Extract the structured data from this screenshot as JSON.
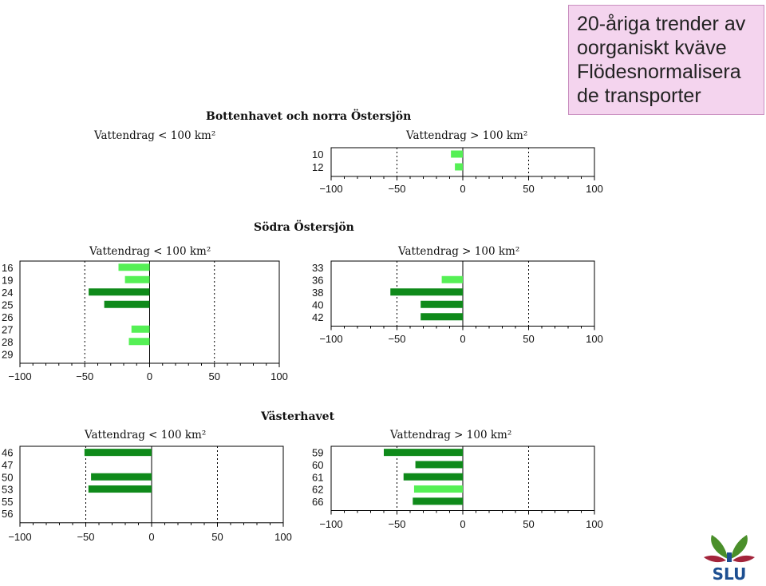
{
  "title_box": {
    "lines": [
      "20-åriga trender av",
      "oorganiskt kväve",
      "Flödesnormalisera",
      "de transporter"
    ],
    "background": "#f4d4ee"
  },
  "colors": {
    "significant": "#0f8a1a",
    "not_significant": "#55f055",
    "grid_line": "#000000"
  },
  "sections": [
    {
      "title": "Bottenhavet och norra Östersjön"
    },
    {
      "title": "Södra Östersjön"
    },
    {
      "title": "Västerhavet"
    }
  ],
  "panels": [
    {
      "title": "Vattendrag < 100 km²"
    },
    {
      "title": "Vattendrag > 100 km²"
    },
    {
      "title": "Vattendrag < 100 km²"
    },
    {
      "title": "Vattendrag > 100 km²"
    },
    {
      "title": "Vattendrag < 100 km²"
    },
    {
      "title": "Vattendrag > 100 km²"
    }
  ],
  "chart_data": [
    {
      "type": "bar",
      "orientation": "horizontal",
      "section": "Bottenhavet och norra Östersjön",
      "title": "Vattendrag > 100 km²",
      "categories": [
        "10",
        "12"
      ],
      "values": [
        -9,
        -6
      ],
      "significant": [
        false,
        false
      ],
      "xlim": [
        -100,
        100
      ],
      "xticks": [
        "−100",
        "−50",
        "0",
        "50",
        "100"
      ],
      "grid_x": [
        -50,
        50
      ]
    },
    {
      "type": "bar",
      "orientation": "horizontal",
      "section": "Södra Östersjön",
      "title": "Vattendrag < 100 km²",
      "categories": [
        "16",
        "19",
        "24",
        "25",
        "26",
        "27",
        "28",
        "29"
      ],
      "values": [
        -24,
        -19,
        -47,
        -35,
        null,
        -14,
        -16,
        null
      ],
      "significant": [
        false,
        false,
        true,
        true,
        null,
        false,
        false,
        null
      ],
      "xlim": [
        -100,
        100
      ],
      "xticks": [
        "−100",
        "−50",
        "0",
        "50",
        "100"
      ],
      "grid_x": [
        -50,
        50
      ]
    },
    {
      "type": "bar",
      "orientation": "horizontal",
      "section": "Södra Östersjön",
      "title": "Vattendrag > 100 km²",
      "categories": [
        "33",
        "36",
        "38",
        "40",
        "42"
      ],
      "values": [
        null,
        -16,
        -55,
        -32,
        -32
      ],
      "significant": [
        null,
        false,
        true,
        true,
        true
      ],
      "xlim": [
        -100,
        100
      ],
      "xticks": [
        "−100",
        "−50",
        "0",
        "50",
        "100"
      ],
      "grid_x": [
        -50,
        50
      ]
    },
    {
      "type": "bar",
      "orientation": "horizontal",
      "section": "Västerhavet",
      "title": "Vattendrag < 100 km²",
      "categories": [
        "46",
        "47",
        "50",
        "53",
        "55",
        "56"
      ],
      "values": [
        -51,
        null,
        -46,
        -48,
        null,
        null
      ],
      "significant": [
        true,
        null,
        true,
        true,
        null,
        null
      ],
      "xlim": [
        -100,
        100
      ],
      "xticks": [
        "−100",
        "−50",
        "0",
        "50",
        "100"
      ],
      "grid_x": [
        -50,
        50
      ]
    },
    {
      "type": "bar",
      "orientation": "horizontal",
      "section": "Västerhavet",
      "title": "Vattendrag > 100 km²",
      "categories": [
        "59",
        "60",
        "61",
        "62",
        "66"
      ],
      "values": [
        -60,
        -36,
        -45,
        -37,
        -38
      ],
      "significant": [
        true,
        true,
        true,
        false,
        true
      ],
      "xlim": [
        -100,
        100
      ],
      "xticks": [
        "−100",
        "−50",
        "0",
        "50",
        "100"
      ],
      "grid_x": [
        -50,
        50
      ]
    }
  ],
  "logo": {
    "text": "SLU",
    "color_green": "#4a8f2a",
    "color_red": "#a3243b",
    "color_blue": "#1d4f91"
  }
}
